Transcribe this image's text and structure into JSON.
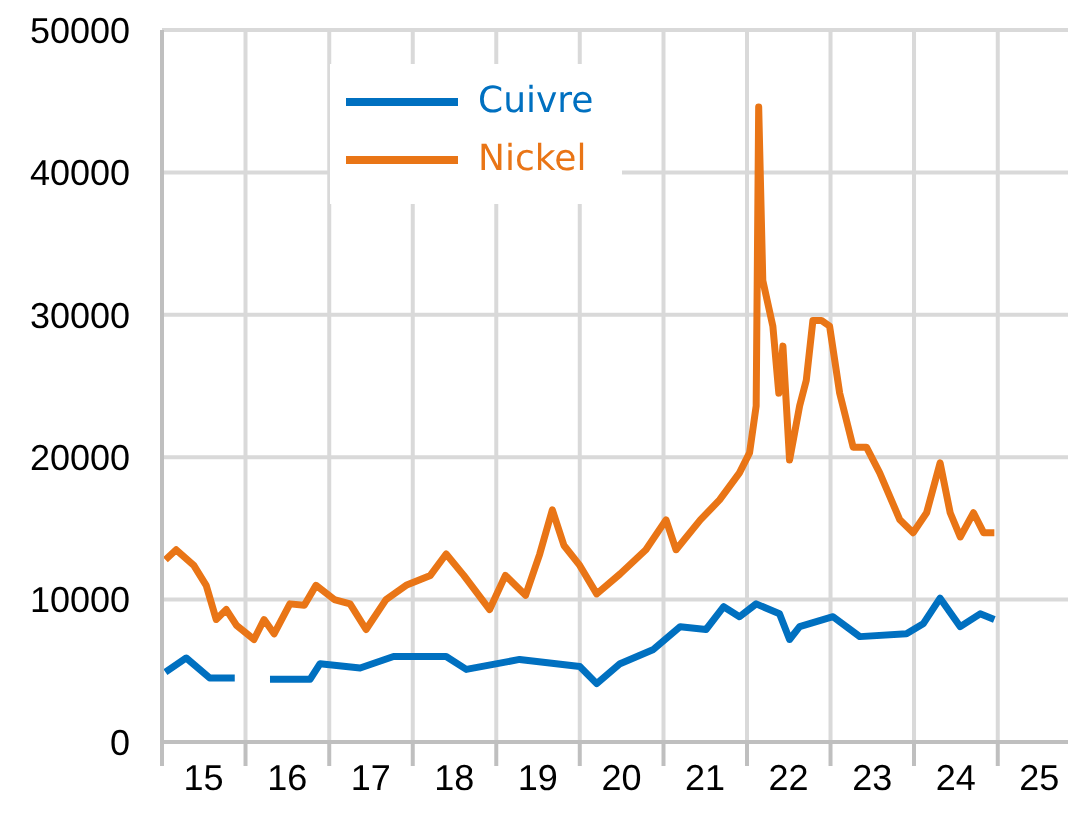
{
  "chart_data": {
    "type": "line",
    "xlim": [
      "2015-01-01",
      "2025-11-04"
    ],
    "xticks": [
      {
        "value": "2015-01-01",
        "label": null
      },
      {
        "value": "2015-07-02",
        "label": "15"
      },
      {
        "value": "2016-01-01",
        "label": null
      },
      {
        "value": "2016-07-02",
        "label": "16"
      },
      {
        "value": "2017-01-01",
        "label": null
      },
      {
        "value": "2017-07-02",
        "label": "17"
      },
      {
        "value": "2018-01-01",
        "label": null
      },
      {
        "value": "2018-07-02",
        "label": "18"
      },
      {
        "value": "2019-01-01",
        "label": null
      },
      {
        "value": "2019-07-02",
        "label": "19"
      },
      {
        "value": "2020-01-01",
        "label": null
      },
      {
        "value": "2020-07-02",
        "label": "20"
      },
      {
        "value": "2021-01-01",
        "label": null
      },
      {
        "value": "2021-07-02",
        "label": "21"
      },
      {
        "value": "2022-01-01",
        "label": null
      },
      {
        "value": "2022-07-02",
        "label": "22"
      },
      {
        "value": "2023-01-01",
        "label": null
      },
      {
        "value": "2023-07-02",
        "label": "23"
      },
      {
        "value": "2024-01-01",
        "label": null
      },
      {
        "value": "2024-07-02",
        "label": "24"
      },
      {
        "value": "2025-01-01",
        "label": null
      },
      {
        "value": "2025-07-02",
        "label": "25"
      }
    ],
    "ylim": [
      0,
      50000
    ],
    "yticks": [
      0,
      10000,
      20000,
      30000,
      40000,
      50000
    ],
    "grid": true,
    "legend": "top left",
    "marker": "none",
    "line_style": "solid",
    "series": [
      {
        "name": "Cuivre",
        "color": "#0070c0",
        "x": [
          "2015-01-16",
          "2015-04-17",
          "2015-07-28",
          "2015-11-15",
          "2016-01-30",
          "2016-04-17",
          "2016-10-09",
          "2016-11-22",
          "2017-05-16",
          "2017-10-09",
          "2018-05-27",
          "2018-08-23",
          "2019-04-13",
          "2020-01-01",
          "2020-03-15",
          "2020-06-25",
          "2020-11-18",
          "2021-03-15",
          "2021-07-06",
          "2021-09-21",
          "2021-11-29",
          "2022-02-10",
          "2022-05-23",
          "2022-07-06",
          "2022-08-19",
          "2023-01-12",
          "2023-05-09",
          "2023-11-29",
          "2024-02-10",
          "2024-04-24",
          "2024-07-21",
          "2024-10-16",
          "2024-12-17"
        ],
        "values": [
          4900,
          5900,
          4500,
          4500,
          null,
          4400,
          4400,
          5500,
          5200,
          6000,
          6000,
          5100,
          5800,
          5300,
          4100,
          5500,
          6500,
          8100,
          7900,
          9500,
          8800,
          9700,
          9000,
          7200,
          8100,
          8800,
          7400,
          7600,
          8300,
          10100,
          8100,
          9000,
          8600
        ]
      },
      {
        "name": "Nickel",
        "color": "#e97516",
        "x": [
          "2015-01-16",
          "2015-03-04",
          "2015-05-20",
          "2015-07-13",
          "2015-08-26",
          "2015-10-09",
          "2015-11-22",
          "2016-02-07",
          "2016-03-22",
          "2016-05-05",
          "2016-07-13",
          "2016-09-14",
          "2016-11-04",
          "2017-01-23",
          "2017-04-02",
          "2017-06-11",
          "2017-09-06",
          "2017-12-03",
          "2018-03-19",
          "2018-05-27",
          "2018-08-12",
          "2018-12-03",
          "2019-02-10",
          "2019-05-09",
          "2019-07-10",
          "2019-09-03",
          "2019-10-24",
          "2020-01-01",
          "2020-03-15",
          "2020-06-25",
          "2020-10-16",
          "2021-01-12",
          "2021-02-25",
          "2021-06-11",
          "2021-09-03",
          "2021-11-29",
          "2022-01-12",
          "2022-02-10",
          "2022-02-21",
          "2022-03-11",
          "2022-04-24",
          "2022-05-20",
          "2022-06-07",
          "2022-07-06",
          "2022-08-19",
          "2022-09-17",
          "2022-10-16",
          "2022-11-22",
          "2022-12-28",
          "2023-02-10",
          "2023-04-10",
          "2023-06-07",
          "2023-08-04",
          "2023-10-31",
          "2023-12-28",
          "2024-02-25",
          "2024-04-24",
          "2024-06-07",
          "2024-07-21",
          "2024-09-17",
          "2024-10-31",
          "2024-12-17"
        ],
        "values": [
          12800,
          13500,
          12400,
          11000,
          8600,
          9300,
          8200,
          7200,
          8600,
          7600,
          9700,
          9600,
          11000,
          10000,
          9700,
          7900,
          10000,
          11000,
          11700,
          13200,
          11700,
          9300,
          11700,
          10300,
          13200,
          16300,
          13800,
          12400,
          10400,
          11800,
          13500,
          15600,
          13500,
          15600,
          17000,
          18900,
          20300,
          23600,
          44600,
          32400,
          29200,
          24500,
          27800,
          19800,
          23600,
          25400,
          29600,
          29600,
          29200,
          24500,
          20700,
          20700,
          18900,
          15600,
          14700,
          16100,
          19600,
          16100,
          14400,
          16100,
          14700,
          14700
        ]
      }
    ]
  }
}
